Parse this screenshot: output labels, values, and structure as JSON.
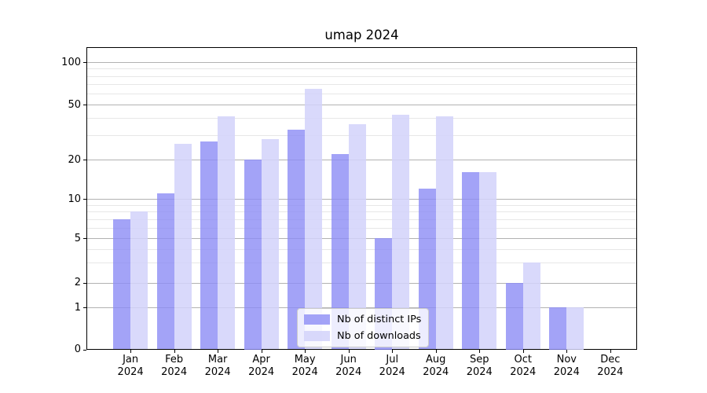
{
  "figure": {
    "title": "umap 2024"
  },
  "chart_data": {
    "type": "bar",
    "title": "umap 2024",
    "categories": [
      "Jan 2024",
      "Feb 2024",
      "Mar 2024",
      "Apr 2024",
      "May 2024",
      "Jun 2024",
      "Jul 2024",
      "Aug 2024",
      "Sep 2024",
      "Oct 2024",
      "Nov 2024",
      "Dec 2024"
    ],
    "series": [
      {
        "name": "Nb of distinct IPs",
        "color": "rgba(140,140,245,0.8)",
        "values": [
          7,
          11,
          27,
          20,
          33,
          22,
          5,
          12,
          16,
          2,
          1,
          0
        ]
      },
      {
        "name": "Nb of downloads",
        "color": "rgba(210,210,250,0.85)",
        "values": [
          8,
          26,
          41,
          28,
          65,
          36,
          42,
          41,
          16,
          3,
          1,
          0
        ]
      }
    ],
    "ylabel": "",
    "xlabel": "",
    "yticks": [
      0,
      1,
      2,
      5,
      10,
      20,
      50,
      100
    ],
    "yticklabels": [
      "0",
      "1",
      "2",
      "5",
      "10",
      "20",
      "50",
      "100"
    ],
    "minor_yticks": [
      3,
      4,
      6,
      7,
      8,
      9,
      30,
      40,
      60,
      70,
      80,
      90
    ],
    "ylim": [
      0,
      128
    ],
    "scale": "asinh-log (0,1,2,5,10,20,50,100 ticks)",
    "grid": "on",
    "legend_position": "lower center",
    "colors": {
      "major_grid": "#b2b2b2",
      "minor_grid": "#e7e7e7",
      "axis": "#000000",
      "background": "#ffffff",
      "bar_dark": "#a6a6f4",
      "bar_light": "#dcdcf9"
    }
  }
}
